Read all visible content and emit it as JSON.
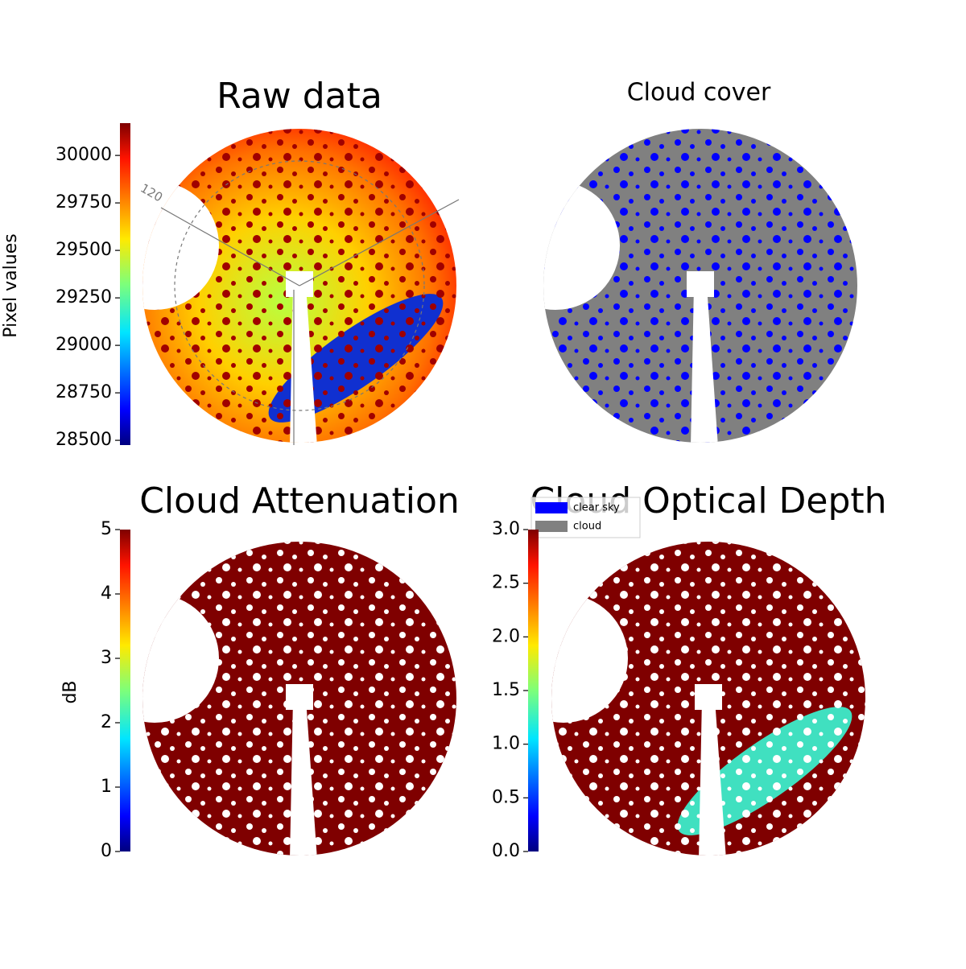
{
  "chart_data": [
    {
      "type": "image",
      "title": "Raw data",
      "colorbar_label": "Pixel values",
      "colormap": "jet",
      "ylim": [
        28475,
        30170
      ],
      "yticks": [
        28500,
        28750,
        29000,
        29250,
        29500,
        29750,
        30000
      ],
      "annotations": [
        "120"
      ]
    },
    {
      "type": "image",
      "title": "Cloud cover",
      "legend": [
        {
          "name": "clear sky",
          "color": "#0000ff"
        },
        {
          "name": "cloud",
          "color": "#808080"
        }
      ]
    },
    {
      "type": "image",
      "title": "Cloud Attenuation",
      "colorbar_label": "dB",
      "colormap": "jet",
      "ylim": [
        0,
        5
      ],
      "yticks": [
        0,
        1,
        2,
        3,
        4,
        5
      ]
    },
    {
      "type": "image",
      "title": "Cloud Optical Depth",
      "colormap": "jet",
      "ylim": [
        0,
        3
      ],
      "yticks": [
        {
          "value": 0,
          "label": "0.0"
        },
        0.5,
        {
          "value": 1,
          "label": "1.0"
        },
        1.5,
        {
          "value": 2,
          "label": "2.0"
        },
        2.5,
        {
          "value": 3,
          "label": "3.0"
        }
      ]
    }
  ]
}
